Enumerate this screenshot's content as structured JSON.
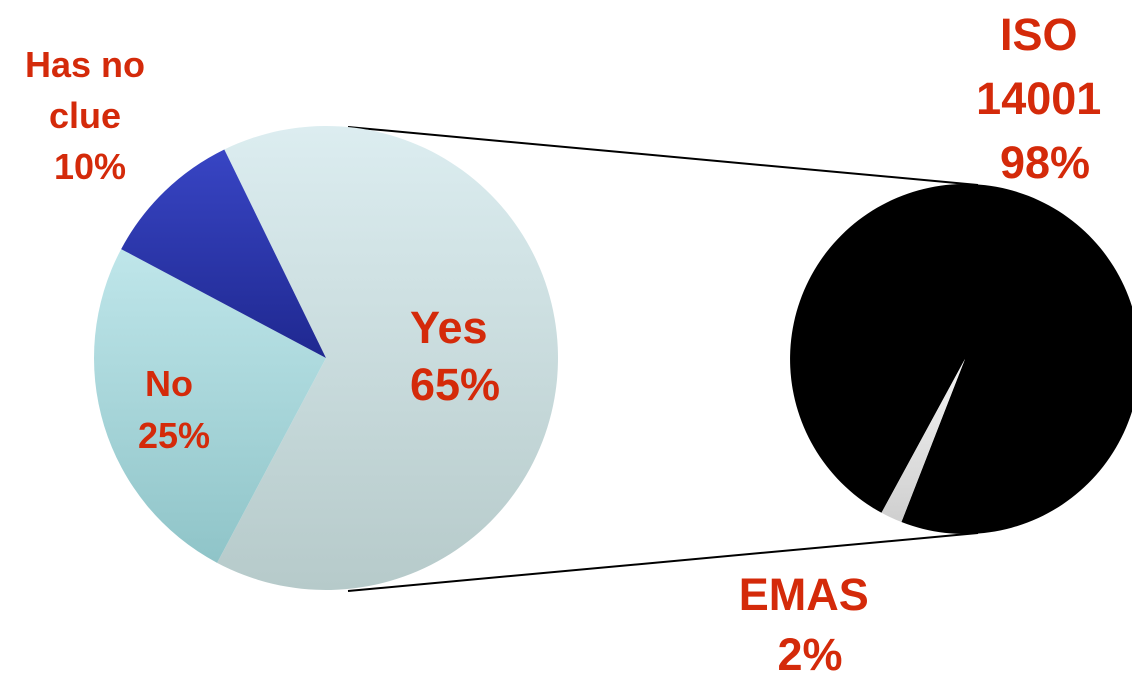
{
  "chart_data": [
    {
      "type": "pie",
      "categories": [
        "Yes",
        "No",
        "Has no clue"
      ],
      "values": [
        65,
        25,
        10
      ],
      "labels": [
        {
          "lines": [
            "Yes",
            "65%"
          ]
        },
        {
          "lines": [
            "No",
            "25%"
          ]
        },
        {
          "lines": [
            "Has no",
            "clue",
            "10%"
          ]
        }
      ],
      "colors": [
        "#d3e8ea",
        "#aedde2",
        "#2a36b0"
      ]
    },
    {
      "type": "pie",
      "categories": [
        "ISO 14001",
        "EMAS"
      ],
      "values": [
        98,
        2
      ],
      "labels": [
        {
          "lines": [
            "ISO",
            "14001",
            "98%"
          ]
        },
        {
          "lines": [
            "EMAS",
            "2%"
          ]
        }
      ],
      "colors": [
        "#000000",
        "#e4e4e4"
      ]
    }
  ]
}
